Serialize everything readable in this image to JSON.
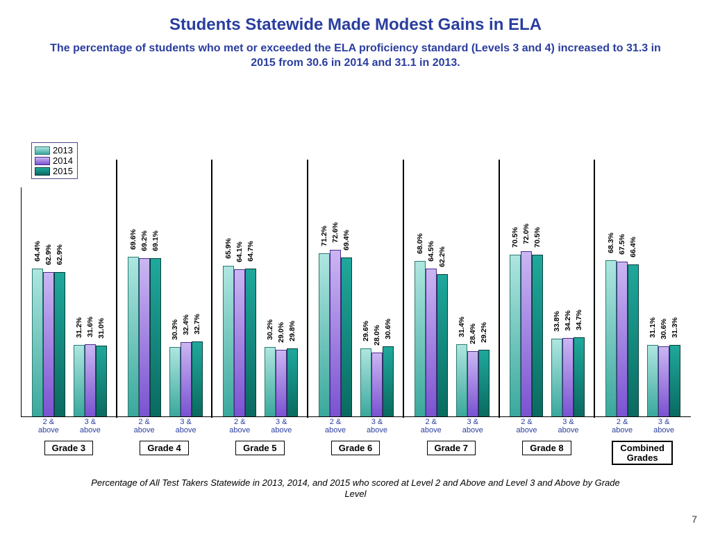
{
  "title": "Students Statewide Made Modest Gains in ELA",
  "title_color": "#2a3e9e",
  "subtitle": "The percentage of students who met or exceeded the ELA proficiency standard (Levels 3 and 4) increased to 31.3 in 2015 from 30.6 in 2014 and 31.1 in 2013.",
  "subtitle_color": "#2a3e9e",
  "caption": "Percentage of All Test Takers Statewide in 2013, 2014, and 2015 who scored at Level 2 and Above and Level 3 and Above by Grade Level",
  "page_number": "7",
  "chart": {
    "type": "bar",
    "ymax": 100,
    "cluster_labels": [
      "2 &<br>above",
      "3 &<br>above"
    ],
    "cluster_label_color": "#2a3e9e",
    "series": [
      {
        "name": "2013",
        "fill_top": "#aee6e0",
        "fill_bot": "#3aa89c",
        "border": "#2a7a70"
      },
      {
        "name": "2014",
        "fill_top": "#cbb6f2",
        "fill_bot": "#7a52d1",
        "border": "#4a2c8a"
      },
      {
        "name": "2015",
        "fill_top": "#1fa89c",
        "fill_bot": "#0a6a60",
        "border": "#083e38"
      }
    ],
    "groups": [
      {
        "label": "Grade 3",
        "clusters": [
          [
            64.4,
            62.9,
            62.9
          ],
          [
            31.2,
            31.6,
            31.0
          ]
        ]
      },
      {
        "label": "Grade 4",
        "clusters": [
          [
            69.6,
            69.2,
            69.1
          ],
          [
            30.3,
            32.4,
            32.7
          ]
        ]
      },
      {
        "label": "Grade 5",
        "clusters": [
          [
            65.9,
            64.1,
            64.7
          ],
          [
            30.2,
            29.0,
            29.8
          ]
        ]
      },
      {
        "label": "Grade 6",
        "clusters": [
          [
            71.2,
            72.6,
            69.4
          ],
          [
            29.6,
            28.0,
            30.6
          ]
        ]
      },
      {
        "label": "Grade 7",
        "clusters": [
          [
            68.0,
            64.5,
            62.2
          ],
          [
            31.4,
            28.4,
            29.2
          ]
        ]
      },
      {
        "label": "Grade 8",
        "clusters": [
          [
            70.5,
            72.0,
            70.5
          ],
          [
            33.8,
            34.2,
            34.7
          ]
        ]
      },
      {
        "label": "Combined Grades",
        "bold_box": true,
        "clusters": [
          [
            68.3,
            67.5,
            66.4
          ],
          [
            31.1,
            30.6,
            31.3
          ]
        ]
      }
    ]
  }
}
